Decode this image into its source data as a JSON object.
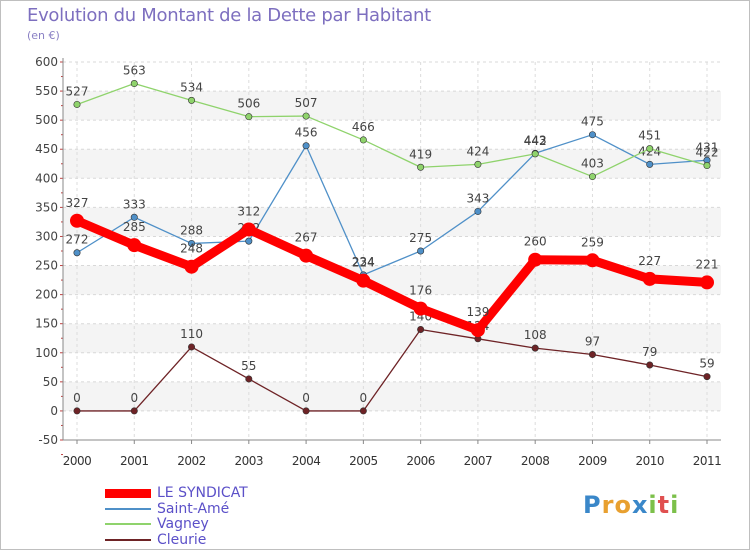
{
  "title": "Evolution du Montant de la Dette par Habitant",
  "unit_label": "(en €)",
  "logo": {
    "text": "Proxiti",
    "letters": [
      "P",
      "r",
      "o",
      "x",
      "i",
      "t",
      "i"
    ],
    "colors": [
      "#3a87c9",
      "#e8a030",
      "#e8a030",
      "#3a87c9",
      "#7cc04a",
      "#e05050",
      "#7cc04a"
    ]
  },
  "chart_data": {
    "type": "line",
    "title": "Evolution du Montant de la Dette par Habitant",
    "ylabel": "(en €)",
    "xlabel": "",
    "ylim": [
      -50,
      600
    ],
    "yticks": [
      -50,
      0,
      50,
      100,
      150,
      200,
      250,
      300,
      350,
      400,
      450,
      500,
      550,
      600
    ],
    "categories": [
      "2000",
      "2001",
      "2002",
      "2003",
      "2004",
      "2005",
      "2006",
      "2007",
      "2008",
      "2009",
      "2010",
      "2011"
    ],
    "grid": true,
    "legend_position": "bottom-left",
    "series": [
      {
        "name": "Saint-Amé",
        "color": "#4f90c8",
        "values": [
          272,
          333,
          288,
          292,
          456,
          234,
          275,
          343,
          443,
          475,
          424,
          431
        ]
      },
      {
        "name": "Vagney",
        "color": "#8fd36c",
        "values": [
          527,
          563,
          534,
          506,
          507,
          466,
          419,
          424,
          442,
          403,
          451,
          422
        ]
      },
      {
        "name": "Cleurie",
        "color": "#6e2326",
        "values": [
          0,
          0,
          110,
          55,
          0,
          0,
          140,
          124,
          108,
          97,
          79,
          59
        ]
      },
      {
        "name": "LE SYNDICAT",
        "color": "#ff0000",
        "values": [
          327,
          285,
          248,
          312,
          267,
          224,
          176,
          139,
          260,
          259,
          227,
          221
        ]
      }
    ],
    "data_labels": [
      [
        "272",
        "333",
        "288",
        "292",
        "456",
        "234",
        "275",
        "343",
        "443",
        "475",
        "424",
        "431"
      ],
      [
        "527",
        "563",
        "534",
        "506",
        "507",
        "466",
        "419",
        "424",
        "442",
        "403",
        "451",
        "422"
      ],
      [
        "0",
        "0",
        "110",
        "55",
        "0",
        "0",
        "140",
        "124",
        "108",
        "97",
        "79",
        "59"
      ],
      [
        "327",
        "285",
        "248",
        "312",
        "267",
        "224",
        "176",
        "139",
        "260",
        "259",
        "227",
        "221"
      ]
    ],
    "legend_order": [
      "LE SYNDICAT",
      "Saint-Amé",
      "Vagney",
      "Cleurie"
    ]
  }
}
